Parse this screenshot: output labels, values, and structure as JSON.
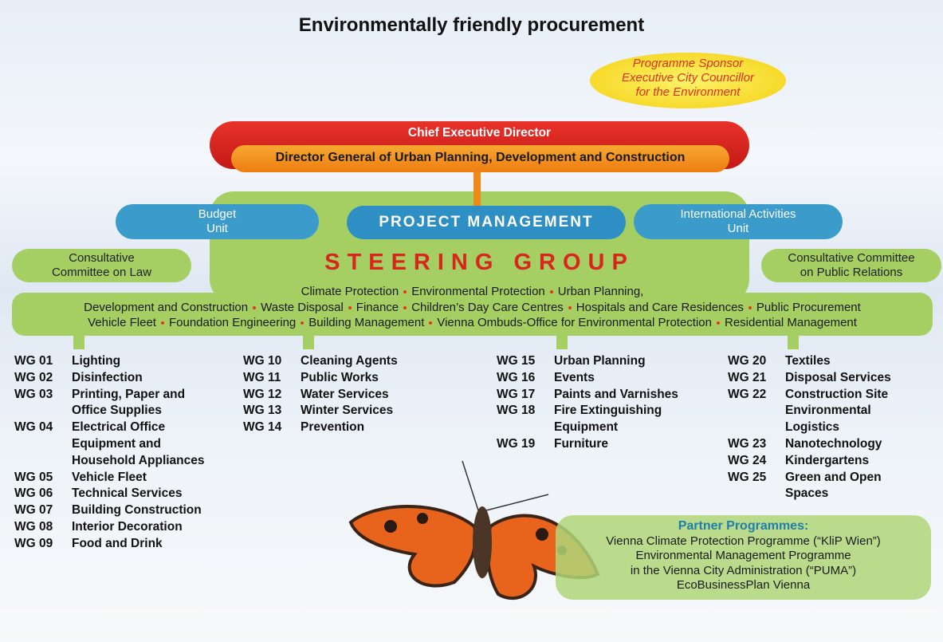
{
  "title": "Environmentally friendly procurement",
  "sponsor": [
    "Programme Sponsor",
    "Executive City Councillor",
    "for the Environment"
  ],
  "chief": "Chief Executive Director",
  "director_general": "Director General of Urban Planning, Development and Construction",
  "budget_unit": [
    "Budget",
    "Unit"
  ],
  "project_management": "PROJECT MANAGEMENT",
  "international_unit": [
    "International Activities",
    "Unit"
  ],
  "consult_law": [
    "Consultative",
    "Committee on Law"
  ],
  "steering_group": "STEERING GROUP",
  "consult_pr": [
    "Consultative Committee",
    "on Public Relations"
  ],
  "members": [
    [
      "Climate Protection",
      "Environmental Protection",
      "Urban Planning,"
    ],
    [
      "Development and Construction",
      "Waste Disposal",
      "Finance",
      "Children’s Day Care Centres",
      "Hospitals and Care Residences",
      "Public Procurement"
    ],
    [
      "Vehicle Fleet",
      "Foundation Engineering",
      "Building Management",
      "Vienna Ombuds-Office for Environmental Protection",
      "Residential Management"
    ]
  ],
  "working_groups": [
    [
      {
        "code": "WG 01",
        "name": [
          "Lighting"
        ]
      },
      {
        "code": "WG 02",
        "name": [
          "Disinfection"
        ]
      },
      {
        "code": "WG 03",
        "name": [
          "Printing, Paper and",
          "Office Supplies"
        ]
      },
      {
        "code": "WG 04",
        "name": [
          "Electrical Office",
          "Equipment and",
          "Household Appliances"
        ]
      },
      {
        "code": "WG 05",
        "name": [
          "Vehicle Fleet"
        ]
      },
      {
        "code": "WG 06",
        "name": [
          "Technical Services"
        ]
      },
      {
        "code": "WG 07",
        "name": [
          "Building Construction"
        ]
      },
      {
        "code": "WG 08",
        "name": [
          "Interior Decoration"
        ]
      },
      {
        "code": "WG 09",
        "name": [
          "Food and Drink"
        ]
      }
    ],
    [
      {
        "code": "WG 10",
        "name": [
          "Cleaning Agents"
        ]
      },
      {
        "code": "WG 11",
        "name": [
          "Public Works"
        ]
      },
      {
        "code": "WG 12",
        "name": [
          "Water Services"
        ]
      },
      {
        "code": "WG 13",
        "name": [
          "Winter Services"
        ]
      },
      {
        "code": "WG 14",
        "name": [
          "Prevention"
        ]
      }
    ],
    [
      {
        "code": "WG 15",
        "name": [
          "Urban Planning"
        ]
      },
      {
        "code": "WG 16",
        "name": [
          "Events"
        ]
      },
      {
        "code": "WG 17",
        "name": [
          "Paints and Varnishes"
        ]
      },
      {
        "code": "WG 18",
        "name": [
          "Fire Extinguishing",
          "Equipment"
        ]
      },
      {
        "code": "WG 19",
        "name": [
          "Furniture"
        ]
      }
    ],
    [
      {
        "code": "WG 20",
        "name": [
          "Textiles"
        ]
      },
      {
        "code": "WG 21",
        "name": [
          "Disposal Services"
        ]
      },
      {
        "code": "WG 22",
        "name": [
          "Construction Site",
          "Environmental",
          "Logistics"
        ]
      },
      {
        "code": "WG 23",
        "name": [
          "Nanotechnology"
        ]
      },
      {
        "code": "WG 24",
        "name": [
          "Kindergartens"
        ]
      },
      {
        "code": "WG 25",
        "name": [
          "Green and Open",
          "Spaces"
        ]
      }
    ]
  ],
  "partner": {
    "title": "Partner Programmes:",
    "lines": [
      "Vienna Climate Protection Programme (“KliP Wien”)",
      "Environmental Management Programme",
      "in the Vienna City Administration (“PUMA”)",
      "EcoBusinessPlan Vienna"
    ]
  }
}
